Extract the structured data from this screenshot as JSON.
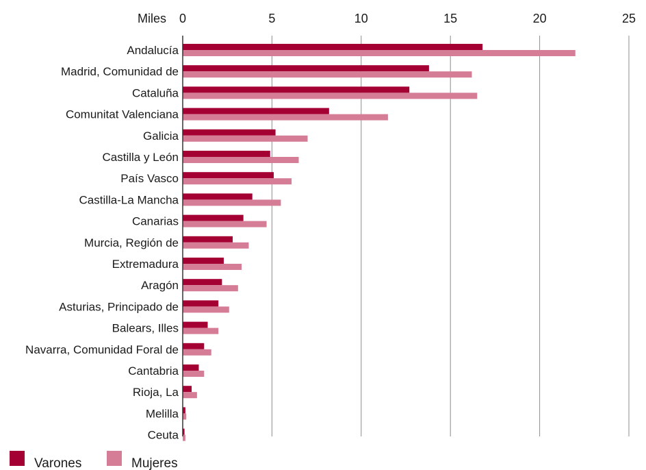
{
  "chart_data": {
    "type": "bar",
    "orientation": "horizontal",
    "unit_label": "Miles",
    "xlim": [
      0,
      25
    ],
    "x_ticks": [
      "0",
      "5",
      "10",
      "15",
      "20",
      "25"
    ],
    "grid": true,
    "legend_position": "bottom-left",
    "categories": [
      "Andalucía",
      "Madrid, Comunidad de",
      "Cataluña",
      "Comunitat Valenciana",
      "Galicia",
      "Castilla y León",
      "País Vasco",
      "Castilla-La Mancha",
      "Canarias",
      "Murcia, Región de",
      "Extremadura",
      "Aragón",
      "Asturias, Principado de",
      "Balears, Illes",
      "Navarra, Comunidad Foral de",
      "Cantabria",
      "Rioja, La",
      "Melilla",
      "Ceuta"
    ],
    "series": [
      {
        "name": "Varones",
        "color": "#a50034",
        "values": [
          16.8,
          13.8,
          12.7,
          8.2,
          5.2,
          4.9,
          5.1,
          3.9,
          3.4,
          2.8,
          2.3,
          2.2,
          2.0,
          1.4,
          1.2,
          0.9,
          0.5,
          0.15,
          0.1
        ]
      },
      {
        "name": "Mujeres",
        "color": "#d57d96",
        "values": [
          22.0,
          16.2,
          16.5,
          11.5,
          7.0,
          6.5,
          6.1,
          5.5,
          4.7,
          3.7,
          3.3,
          3.1,
          2.6,
          2.0,
          1.6,
          1.2,
          0.8,
          0.2,
          0.15
        ]
      }
    ]
  }
}
